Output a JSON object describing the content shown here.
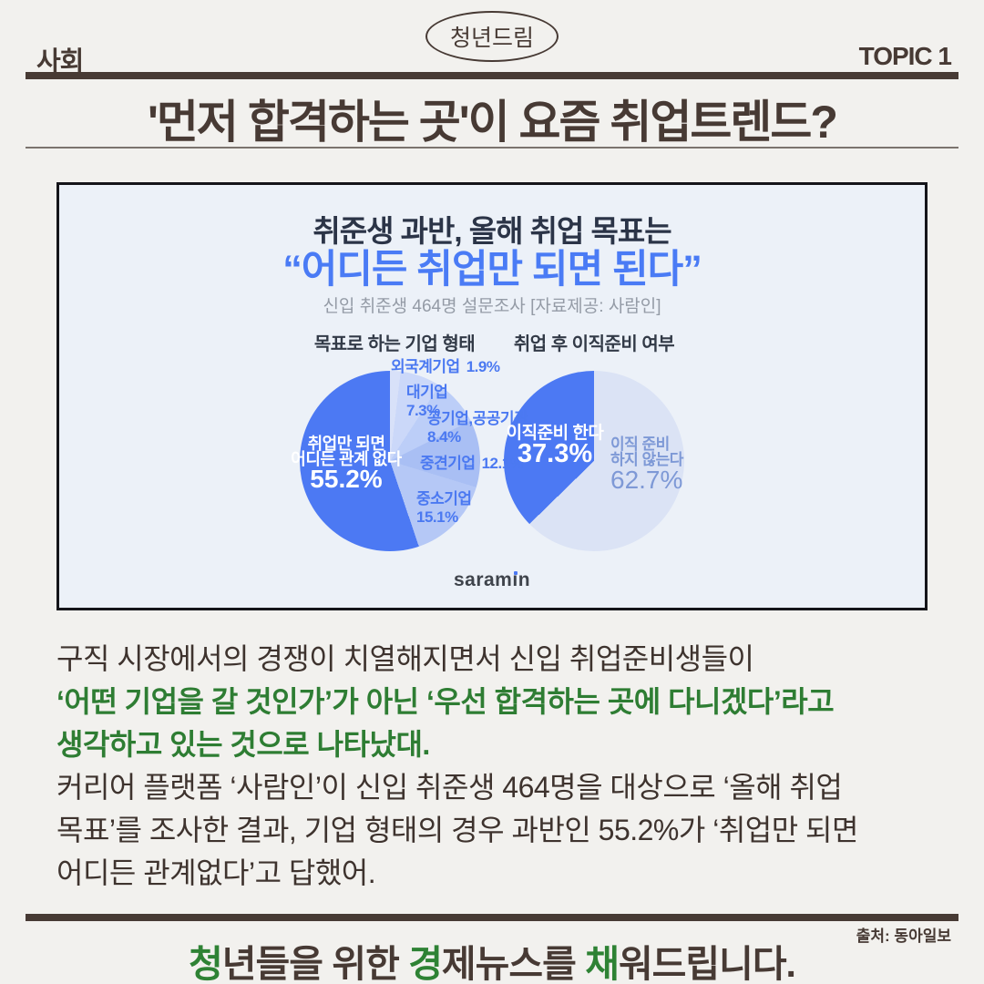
{
  "page": {
    "background": "#f2f1ee",
    "ink": "#473a34",
    "accent_green": "#2e7d33",
    "accent_blue": "#4a7bf5"
  },
  "header": {
    "section": "사회",
    "badge": "청년드림",
    "topic": "TOPIC 1",
    "headline": "'먼저 합격하는 곳'이 요즘 취업트렌드?"
  },
  "card": {
    "title": "취준생 과반, 올해 취업 목표는",
    "quote": "“어디든 취업만 되면 된다”",
    "subtitle": "신입 취준생 464명 설문조사 [자료제공: 사람인]",
    "logo": {
      "pre": "saram",
      "i_stem": "ı",
      "post": "n"
    }
  },
  "chart_data": [
    {
      "type": "pie",
      "title": "목표로 하는 기업 형태",
      "unit": "%",
      "start_angle_deg": 0,
      "clockwise": true,
      "slices": [
        {
          "label": "외국계기업",
          "value": 1.9,
          "value_label": "1.9%",
          "color": "#d8e1f9"
        },
        {
          "label": "대기업",
          "value": 7.3,
          "value_label": "7.3%",
          "color": "#cbd8f9"
        },
        {
          "label": "공기업,공공기관",
          "value": 8.4,
          "value_label": "8.4%",
          "color": "#bccef8"
        },
        {
          "label": "중견기업",
          "value": 12.1,
          "value_label": "12.1%",
          "color": "#a9bff4"
        },
        {
          "label": "중소기업",
          "value": 15.1,
          "value_label": "15.1%",
          "color": "#b5c8f6"
        },
        {
          "label": "취업만 되면 어디든 관계 없다",
          "label_lines": [
            "취업만 되면",
            "어디든 관계 없다"
          ],
          "value": 55.2,
          "value_label": "55.2%",
          "color": "#4c79f3"
        }
      ]
    },
    {
      "type": "pie",
      "title": "취업 후 이직준비 여부",
      "unit": "%",
      "start_angle_deg": 0,
      "clockwise": true,
      "slices": [
        {
          "label": "이직 준비 하지 않는다",
          "label_lines": [
            "이직 준비",
            "하지 않는다"
          ],
          "value": 62.7,
          "value_label": "62.7%",
          "color": "#dbe3f5"
        },
        {
          "label": "이직준비 한다",
          "value": 37.3,
          "value_label": "37.3%",
          "color": "#4c79f3"
        }
      ]
    }
  ],
  "body": {
    "lines": [
      {
        "text": "구직 시장에서의 경쟁이 치열해지면서 신입 취업준비생들이",
        "emphasis": false
      },
      {
        "text": "‘어떤 기업을 갈 것인가’가 아닌 ‘우선 합격하는 곳에 다니겠다’라고",
        "emphasis": true
      },
      {
        "text": "생각하고 있는 것으로 나타났대.",
        "emphasis": true
      },
      {
        "text": "커리어 플랫폼 ‘사람인’이 신입 취준생 464명을 대상으로 ‘올해 취업",
        "emphasis": false
      },
      {
        "text": "목표’를 조사한 결과, 기업 형태의 경우 과반인 55.2%가 ‘취업만 되면",
        "emphasis": false
      },
      {
        "text": "어디든 관계없다’고 답했어.",
        "emphasis": false
      }
    ]
  },
  "footer": {
    "source": "출처: 동아일보",
    "segments": [
      {
        "text": "청",
        "green": true
      },
      {
        "text": "년들을 위한 ",
        "green": false
      },
      {
        "text": "경",
        "green": true
      },
      {
        "text": "제뉴스를 ",
        "green": false
      },
      {
        "text": "채",
        "green": true
      },
      {
        "text": "워드립니다.",
        "green": false
      }
    ]
  }
}
